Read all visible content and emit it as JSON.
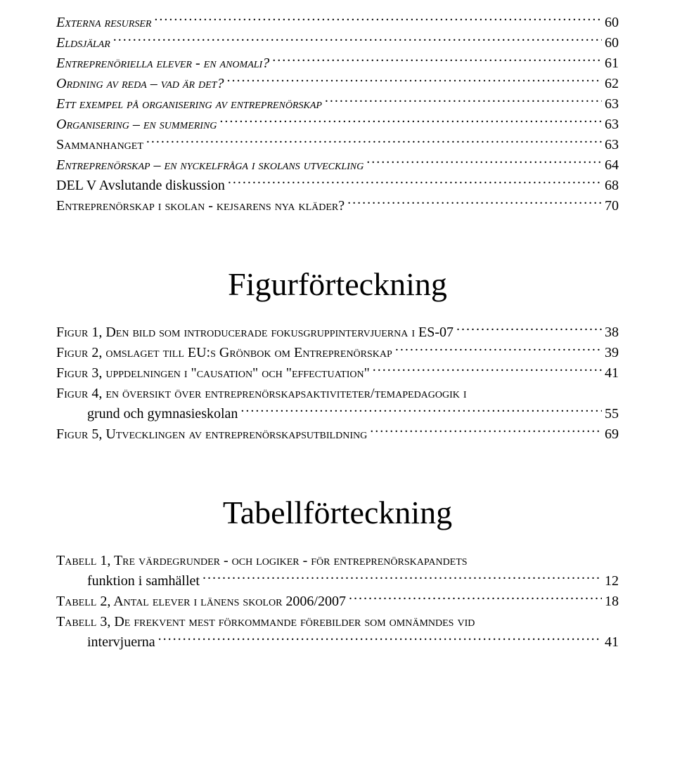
{
  "toc1": [
    {
      "label": "Externa resurser",
      "page": "60",
      "italic": true,
      "indent": 0
    },
    {
      "label": "Eldsjälar",
      "page": "60",
      "italic": true,
      "indent": 0
    },
    {
      "label": "Entreprenöriella elever - en anomali?",
      "page": "61",
      "italic": true,
      "indent": 0
    },
    {
      "label": "Ordning av reda – vad är det?",
      "page": "62",
      "italic": true,
      "indent": 0
    },
    {
      "label": "Ett exempel på organisering av entreprenörskap",
      "page": "63",
      "italic": true,
      "indent": 0
    },
    {
      "label": "Organisering – en summering",
      "page": "63",
      "italic": true,
      "indent": 0
    },
    {
      "label": "Sammanhanget",
      "page": "63",
      "italic": false,
      "indent": 0
    },
    {
      "label": "Entreprenörskap – en nyckelfråga i skolans utveckling",
      "page": "64",
      "italic": true,
      "indent": 0
    },
    {
      "label": "DEL V Avslutande diskussion",
      "page": "68",
      "italic": false,
      "indent": 0,
      "noSc": true
    },
    {
      "label": "Entreprenörskap i skolan - kejsarens nya kläder?",
      "page": "70",
      "italic": false,
      "indent": 0
    }
  ],
  "heading_figures": "Figurförteckning",
  "figures": [
    {
      "label": "Figur 1, Den bild som introducerade fokusgruppintervjuerna i ES-07",
      "page": "38"
    },
    {
      "label": "Figur 2, omslaget till EU:s Grönbok om Entreprenörskap",
      "page": "39"
    },
    {
      "label": "Figur 3, uppdelningen i \"causation\" och \"effectuation\"",
      "page": "41"
    },
    {
      "wrap": true,
      "line1": "Figur 4, en översikt över entreprenörskapsaktiviteter/temapedagogik i",
      "line2": "grund och gymnasieskolan",
      "page": "55"
    },
    {
      "label": "Figur 5, Utvecklingen av entreprenörskapsutbildning",
      "page": "69"
    }
  ],
  "heading_tables": "Tabellförteckning",
  "tables": [
    {
      "wrap": true,
      "line1": "Tabell 1, Tre värdegrunder - och logiker - för entreprenörskapandets",
      "line2": "funktion i samhället",
      "page": "12"
    },
    {
      "label": "Tabell 2, Antal elever i länens skolor 2006/2007",
      "page": "18"
    },
    {
      "wrap": true,
      "line1": "Tabell 3, De frekvent mest förkommande förebilder som omnämndes vid",
      "line2": "intervjuerna",
      "page": "41"
    }
  ]
}
